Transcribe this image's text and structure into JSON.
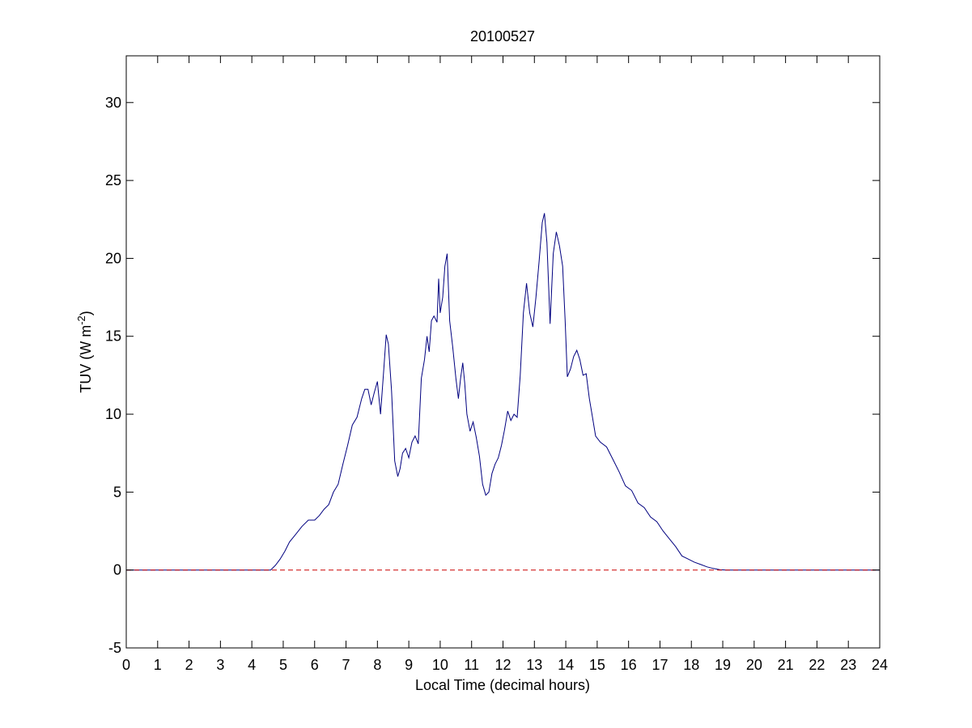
{
  "chart_data": {
    "type": "line",
    "title": "20100527",
    "xlabel": "Local Time (decimal hours)",
    "ylabel": {
      "base": "TUV (W m",
      "sup": "-2",
      "close": ")"
    },
    "xlim": [
      0,
      24
    ],
    "ylim": [
      -5,
      33
    ],
    "xticks": [
      "0",
      "1",
      "2",
      "3",
      "4",
      "5",
      "6",
      "7",
      "8",
      "9",
      "10",
      "11",
      "12",
      "13",
      "14",
      "15",
      "16",
      "17",
      "18",
      "19",
      "20",
      "21",
      "22",
      "23",
      "24"
    ],
    "yticks": [
      "-5",
      "0",
      "5",
      "10",
      "15",
      "20",
      "25",
      "30"
    ],
    "grid": false,
    "legend": "none",
    "series": [
      {
        "color": "#00007f",
        "style": "solid",
        "x": [
          0,
          4.6,
          4.75,
          4.9,
          5.05,
          5.2,
          5.4,
          5.6,
          5.8,
          6.0,
          6.15,
          6.3,
          6.45,
          6.6,
          6.75,
          6.9,
          7.05,
          7.2,
          7.35,
          7.5,
          7.6,
          7.7,
          7.8,
          7.9,
          8.0,
          8.1,
          8.2,
          8.28,
          8.35,
          8.45,
          8.55,
          8.65,
          8.72,
          8.8,
          8.9,
          9.0,
          9.1,
          9.2,
          9.3,
          9.4,
          9.5,
          9.58,
          9.65,
          9.72,
          9.8,
          9.9,
          9.95,
          10.0,
          10.08,
          10.15,
          10.22,
          10.3,
          10.4,
          10.5,
          10.58,
          10.65,
          10.72,
          10.78,
          10.85,
          10.95,
          11.05,
          11.15,
          11.25,
          11.35,
          11.45,
          11.55,
          11.65,
          11.75,
          11.85,
          11.95,
          12.05,
          12.15,
          12.25,
          12.35,
          12.45,
          12.55,
          12.65,
          12.75,
          12.85,
          12.95,
          13.05,
          13.15,
          13.25,
          13.32,
          13.4,
          13.5,
          13.6,
          13.7,
          13.8,
          13.9,
          13.98,
          14.05,
          14.15,
          14.25,
          14.35,
          14.45,
          14.55,
          14.65,
          14.75,
          14.85,
          14.95,
          15.1,
          15.3,
          15.5,
          15.7,
          15.9,
          16.1,
          16.3,
          16.5,
          16.7,
          16.9,
          17.1,
          17.3,
          17.5,
          17.7,
          17.9,
          18.1,
          18.3,
          18.5,
          18.7,
          18.9,
          19.1,
          19.3,
          19.5,
          19.75,
          20.0,
          24
        ],
        "y": [
          0,
          0,
          0.3,
          0.7,
          1.2,
          1.8,
          2.3,
          2.8,
          3.2,
          3.2,
          3.5,
          3.9,
          4.2,
          5.0,
          5.5,
          6.8,
          8.0,
          9.3,
          9.8,
          11.0,
          11.6,
          11.6,
          10.6,
          11.4,
          12.1,
          10.0,
          12.8,
          15.1,
          14.5,
          11.5,
          7.0,
          6.0,
          6.5,
          7.5,
          7.8,
          7.2,
          8.2,
          8.6,
          8.1,
          12.3,
          13.5,
          15.0,
          14.0,
          16.0,
          16.3,
          15.9,
          18.7,
          16.5,
          17.5,
          19.5,
          20.3,
          16.0,
          14.3,
          12.3,
          11.0,
          12.3,
          13.3,
          12.0,
          10.0,
          8.9,
          9.5,
          8.5,
          7.3,
          5.5,
          4.8,
          5.0,
          6.2,
          6.8,
          7.2,
          8.0,
          9.0,
          10.2,
          9.6,
          10.0,
          9.8,
          12.5,
          16.5,
          18.4,
          16.5,
          15.6,
          17.5,
          19.8,
          22.3,
          22.9,
          21.0,
          15.8,
          20.3,
          21.7,
          20.8,
          19.5,
          16.0,
          12.4,
          12.9,
          13.7,
          14.1,
          13.5,
          12.5,
          12.6,
          11.0,
          9.8,
          8.6,
          8.2,
          7.9,
          7.1,
          6.3,
          5.4,
          5.1,
          4.3,
          4.0,
          3.4,
          3.1,
          2.5,
          2.0,
          1.5,
          0.9,
          0.7,
          0.5,
          0.35,
          0.2,
          0.1,
          0.02,
          0,
          0,
          0,
          0,
          0,
          0
        ]
      },
      {
        "color": "#cc0000",
        "style": "dashed",
        "x": [
          0,
          24
        ],
        "y": [
          0,
          0
        ]
      }
    ]
  }
}
